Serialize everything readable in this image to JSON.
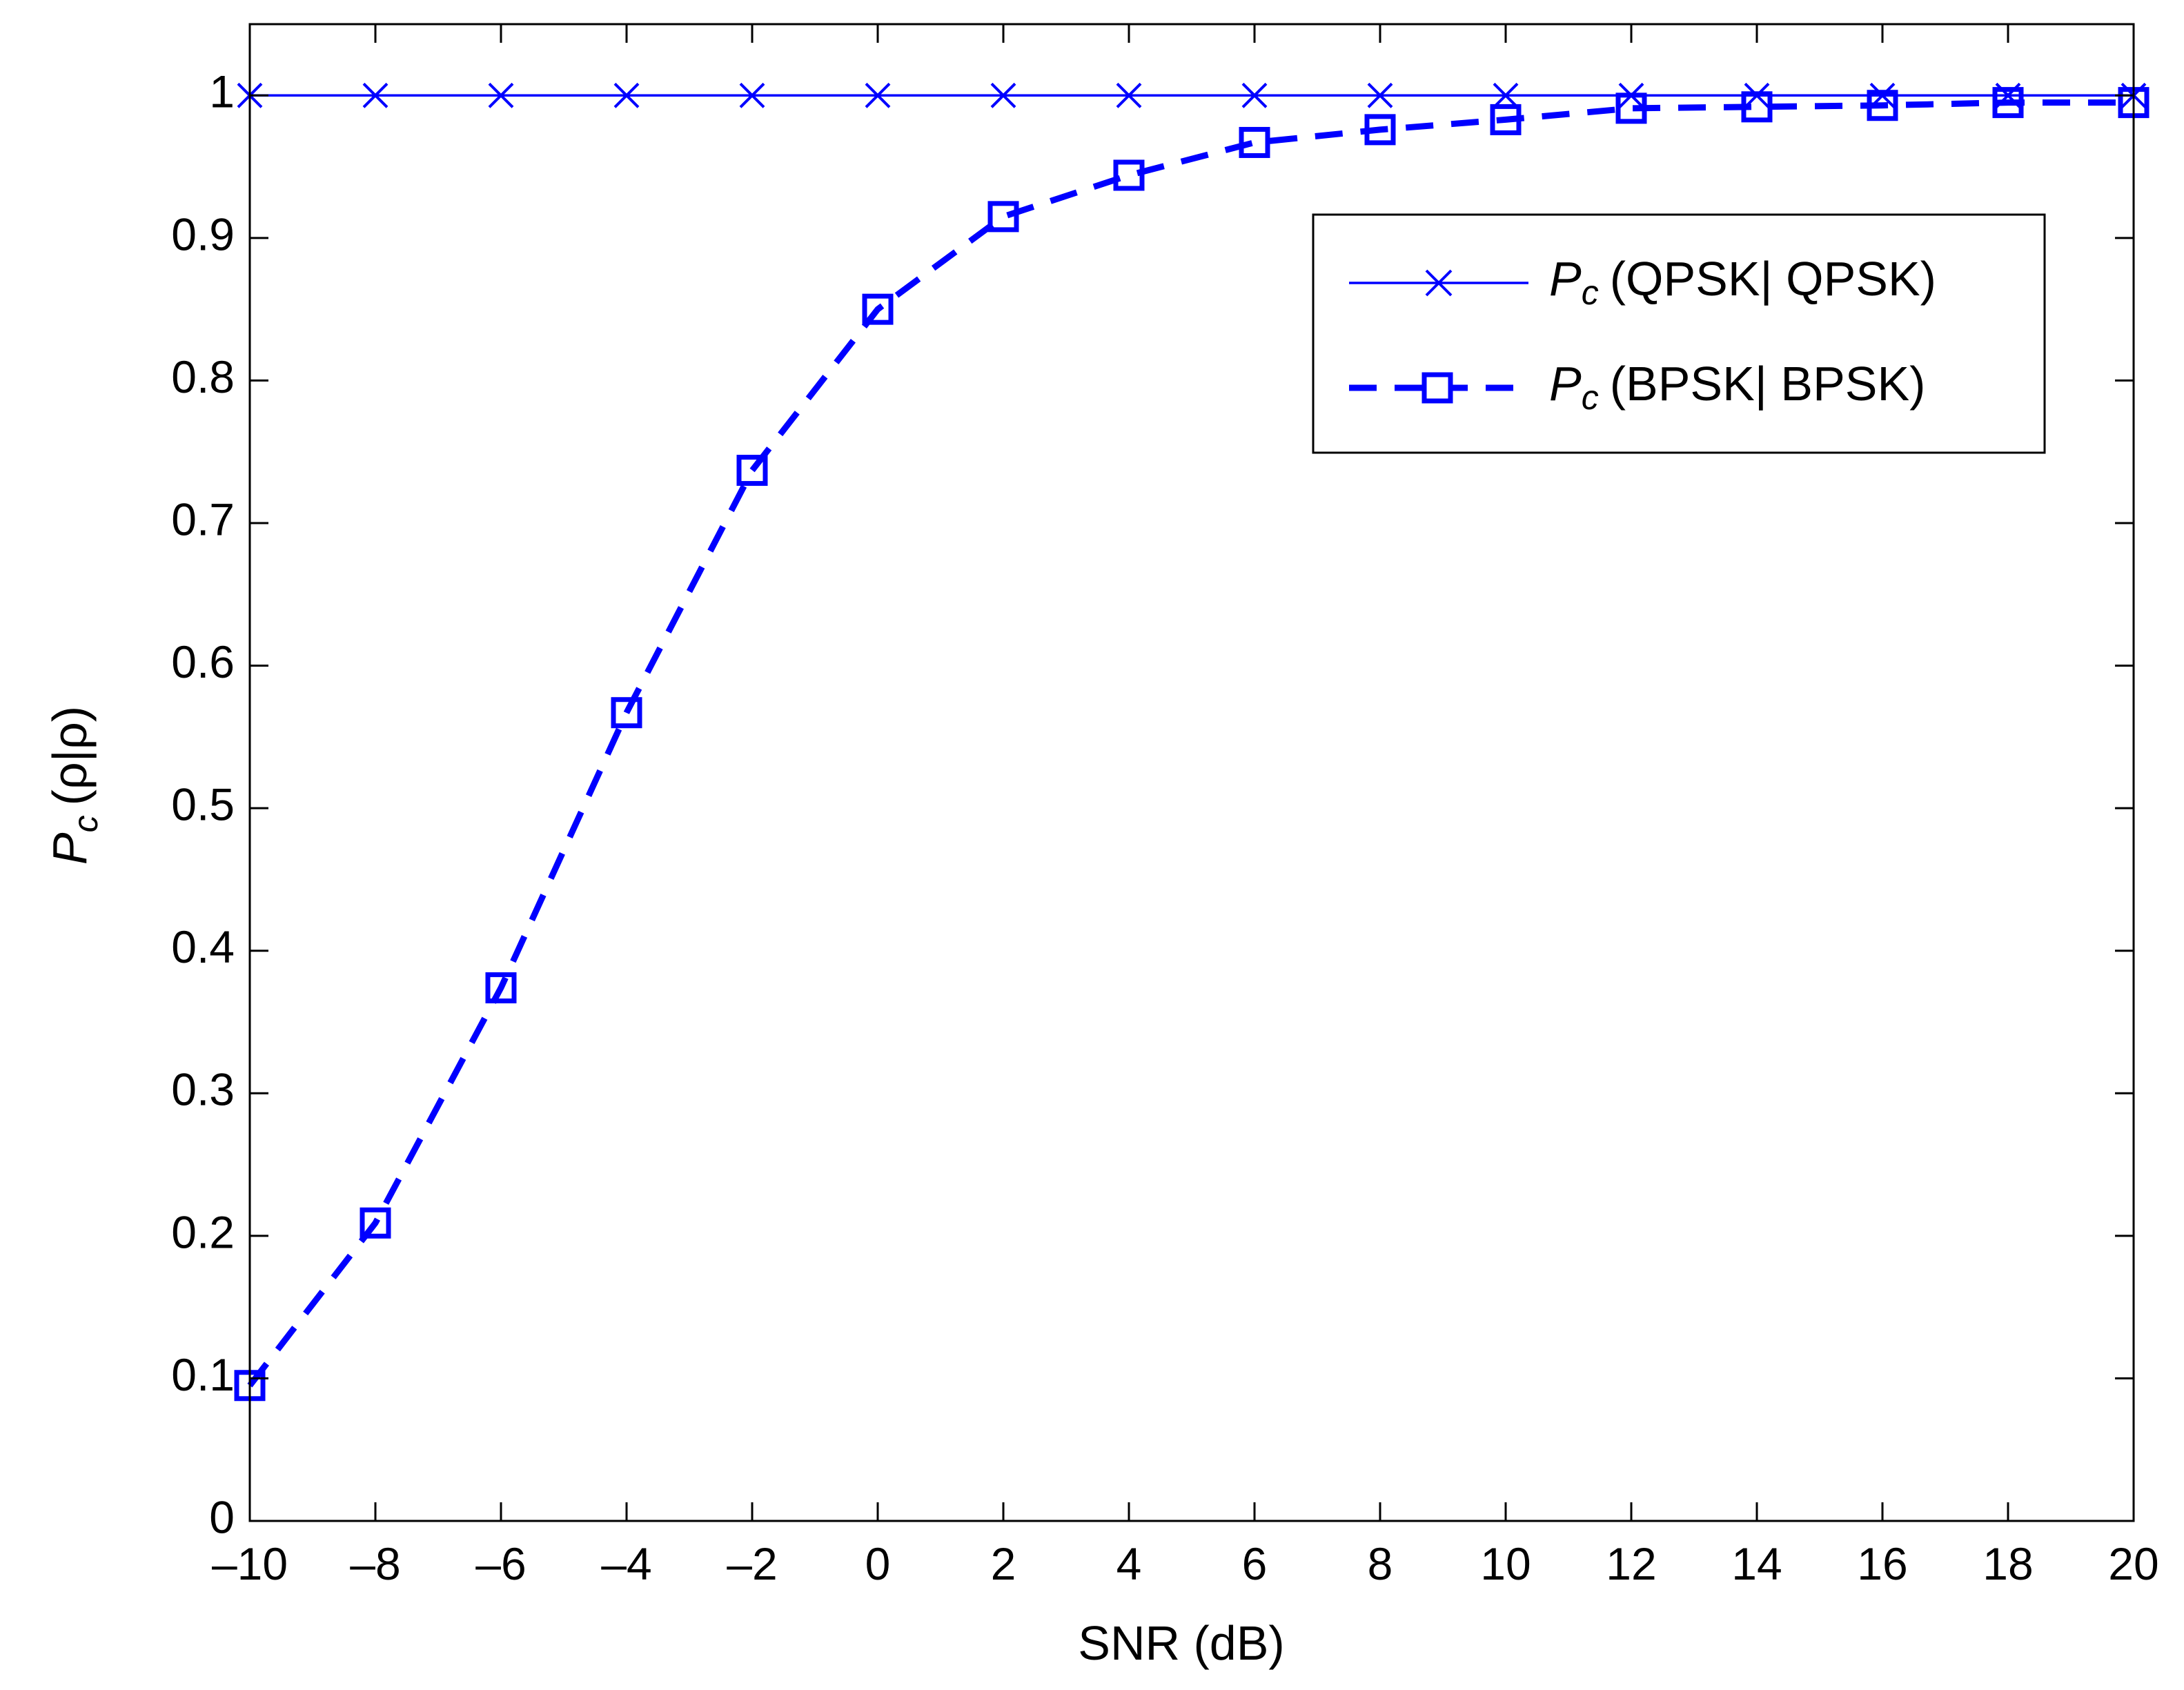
{
  "chart_data": {
    "type": "line",
    "xlabel": "SNR (dB)",
    "ylabel": {
      "symbol": "P",
      "subscript": "c",
      "text": "(ρ|ρ)"
    },
    "xlim": [
      -10,
      20
    ],
    "ylim": [
      0,
      1.05
    ],
    "x_ticks": [
      -10,
      -8,
      -6,
      -4,
      -2,
      0,
      2,
      4,
      6,
      8,
      10,
      12,
      14,
      16,
      18,
      20
    ],
    "x_tick_labels": [
      "–10",
      "–8",
      "–6",
      "–4",
      "–2",
      "0",
      "2",
      "4",
      "6",
      "8",
      "10",
      "12",
      "14",
      "16",
      "18",
      "20"
    ],
    "y_ticks": [
      0,
      0.1,
      0.2,
      0.3,
      0.4,
      0.5,
      0.6,
      0.7,
      0.8,
      0.9,
      1
    ],
    "y_tick_labels": [
      "0",
      "0.1",
      "0.2",
      "0.3",
      "0.4",
      "0.5",
      "0.6",
      "0.7",
      "0.8",
      "0.9",
      "1"
    ],
    "grid": false,
    "legend_position": "top-right",
    "x": [
      -10,
      -8,
      -6,
      -4,
      -2,
      0,
      2,
      4,
      6,
      8,
      10,
      12,
      14,
      16,
      18,
      20
    ],
    "series": [
      {
        "symbol": "P",
        "subscript": "c",
        "label": "(QPSK| QPSK)",
        "color": "#0000ff",
        "line_style": "solid",
        "marker": "x",
        "values": [
          1,
          1,
          1,
          1,
          1,
          1,
          1,
          1,
          1,
          1,
          1,
          1,
          1,
          1,
          1,
          1
        ]
      },
      {
        "symbol": "P",
        "subscript": "c",
        "label": "(BPSK| BPSK)",
        "color": "#0000ff",
        "line_style": "dashed",
        "marker": "square",
        "values": [
          0.095,
          0.209,
          0.374,
          0.567,
          0.737,
          0.85,
          0.915,
          0.944,
          0.967,
          0.976,
          0.983,
          0.991,
          0.992,
          0.993,
          0.995,
          0.995
        ]
      }
    ]
  }
}
